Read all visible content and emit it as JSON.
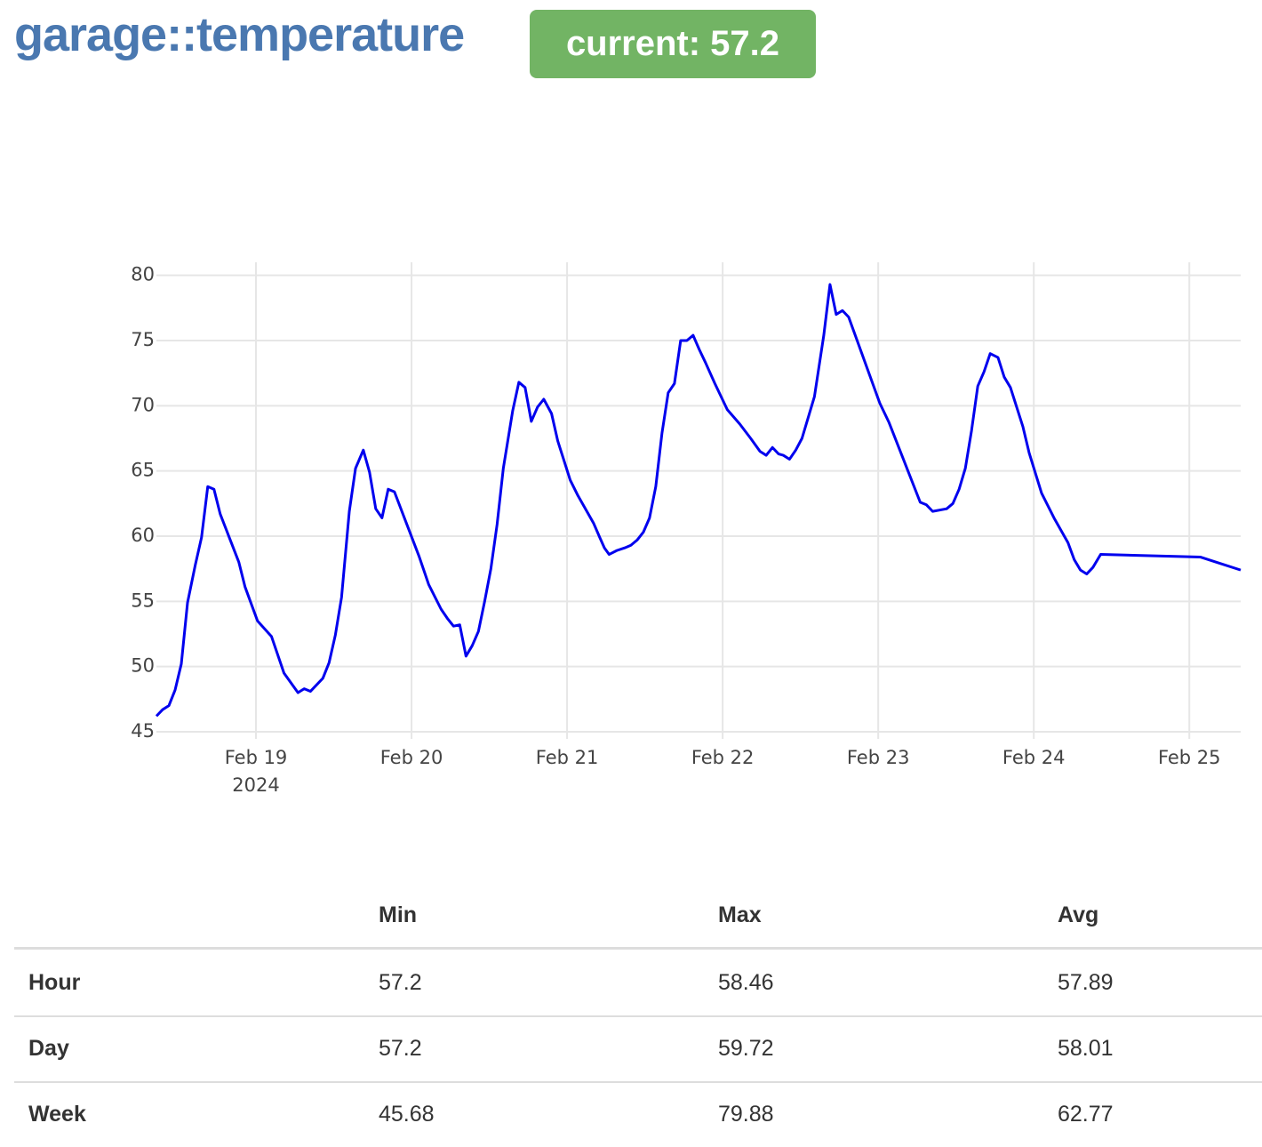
{
  "header": {
    "title": "garage::temperature",
    "badge": "current: 57.2"
  },
  "chart_data": {
    "type": "line",
    "color": "#0000ee",
    "grid": true,
    "x": [
      18.36,
      18.4,
      18.44,
      18.48,
      18.52,
      18.56,
      18.61,
      18.65,
      18.69,
      18.73,
      18.77,
      18.89,
      18.93,
      19.01,
      19.1,
      19.18,
      19.27,
      19.31,
      19.35,
      19.39,
      19.43,
      19.47,
      19.51,
      19.55,
      19.6,
      19.64,
      19.69,
      19.73,
      19.77,
      19.81,
      19.85,
      19.89,
      19.97,
      20.05,
      20.11,
      20.19,
      20.23,
      20.27,
      20.31,
      20.35,
      20.39,
      20.43,
      20.47,
      20.51,
      20.55,
      20.59,
      20.65,
      20.69,
      20.73,
      20.77,
      20.81,
      20.85,
      20.9,
      20.94,
      21.02,
      21.07,
      21.17,
      21.21,
      21.24,
      21.27,
      21.32,
      21.37,
      21.41,
      21.45,
      21.49,
      21.53,
      21.57,
      21.61,
      21.65,
      21.69,
      21.73,
      21.77,
      21.81,
      21.85,
      21.89,
      21.95,
      22.03,
      22.11,
      22.18,
      22.24,
      22.28,
      22.32,
      22.36,
      22.39,
      22.43,
      22.47,
      22.51,
      22.55,
      22.59,
      22.65,
      22.69,
      22.73,
      22.77,
      22.81,
      23.01,
      23.07,
      23.27,
      23.31,
      23.35,
      23.44,
      23.48,
      23.52,
      23.56,
      23.6,
      23.64,
      23.68,
      23.72,
      23.77,
      23.81,
      23.85,
      23.93,
      23.97,
      24.05,
      24.13,
      24.22,
      24.26,
      24.3,
      24.34,
      24.38,
      24.43,
      25.07,
      25.33
    ],
    "values": [
      46.2,
      46.7,
      47.0,
      48.2,
      50.2,
      54.9,
      57.8,
      59.9,
      63.8,
      63.6,
      61.7,
      58.0,
      56.1,
      53.5,
      52.3,
      49.5,
      48.0,
      48.3,
      48.1,
      48.6,
      49.1,
      50.3,
      52.4,
      55.3,
      61.9,
      65.2,
      66.6,
      64.9,
      62.1,
      61.4,
      63.6,
      63.4,
      60.9,
      58.4,
      56.3,
      54.4,
      53.7,
      53.1,
      53.2,
      50.8,
      51.6,
      52.7,
      55.0,
      57.5,
      60.9,
      65.2,
      69.6,
      71.8,
      71.4,
      68.8,
      69.9,
      70.5,
      69.4,
      67.3,
      64.3,
      63.1,
      61.0,
      59.9,
      59.1,
      58.6,
      58.9,
      59.1,
      59.3,
      59.7,
      60.3,
      61.4,
      63.8,
      67.9,
      71.0,
      71.7,
      75.0,
      75.0,
      75.4,
      74.3,
      73.3,
      71.7,
      69.7,
      68.6,
      67.5,
      66.5,
      66.2,
      66.8,
      66.3,
      66.2,
      65.9,
      66.6,
      67.5,
      69.1,
      70.7,
      75.4,
      79.3,
      77.0,
      77.3,
      76.8,
      70.2,
      68.7,
      62.6,
      62.4,
      61.9,
      62.1,
      62.5,
      63.6,
      65.2,
      68.1,
      71.5,
      72.6,
      74.0,
      73.7,
      72.2,
      71.4,
      68.4,
      66.4,
      63.3,
      61.4,
      59.5,
      58.2,
      57.4,
      57.1,
      57.6,
      58.6,
      58.4,
      57.4
    ],
    "xlim": [
      18.36,
      25.33
    ],
    "ylim": [
      45,
      81
    ],
    "xticks": [
      {
        "value": 19,
        "label": "Feb 19\n2024"
      },
      {
        "value": 20,
        "label": "Feb 20"
      },
      {
        "value": 21,
        "label": "Feb 21"
      },
      {
        "value": 22,
        "label": "Feb 22"
      },
      {
        "value": 23,
        "label": "Feb 23"
      },
      {
        "value": 24,
        "label": "Feb 24"
      },
      {
        "value": 25,
        "label": "Feb 25"
      }
    ],
    "yticks": [
      45,
      50,
      55,
      60,
      65,
      70,
      75,
      80
    ]
  },
  "table": {
    "columns": [
      "Min",
      "Max",
      "Avg"
    ],
    "rows": [
      [
        "Hour",
        57.2,
        58.46,
        57.89
      ],
      [
        "Day",
        57.2,
        59.72,
        58.01
      ],
      [
        "Week",
        45.68,
        79.88,
        62.77
      ]
    ]
  }
}
